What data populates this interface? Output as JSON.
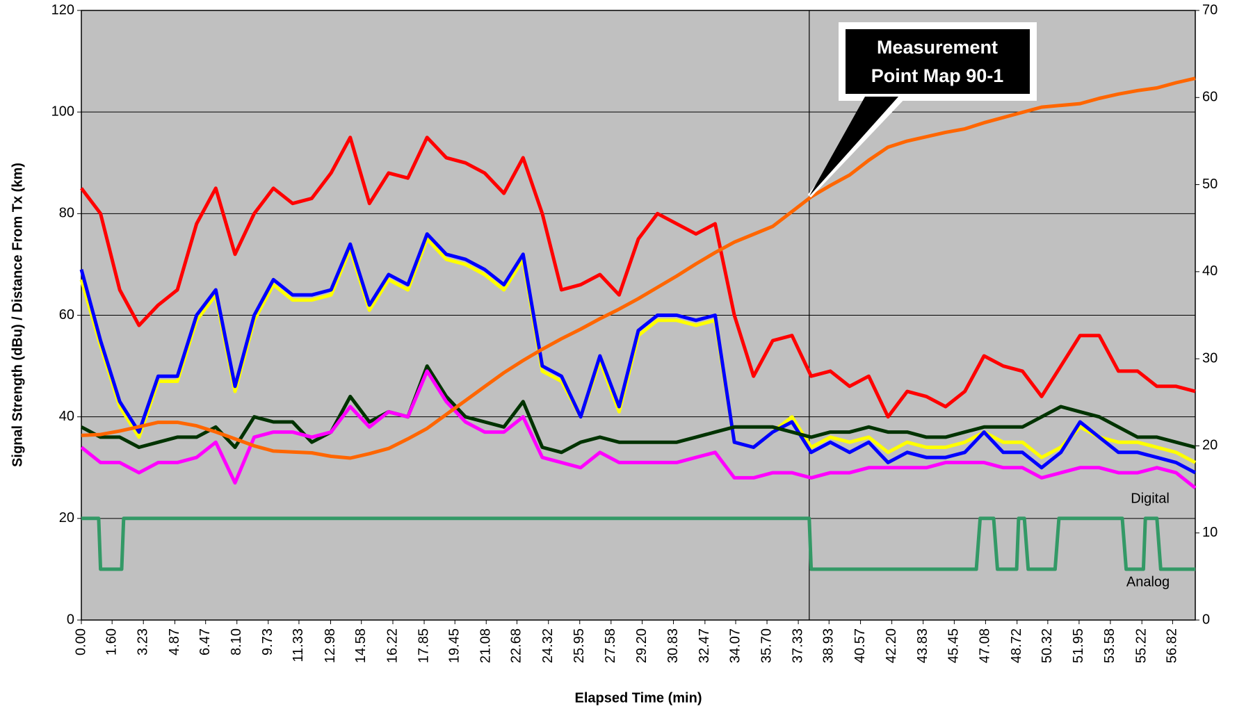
{
  "chart_data": {
    "type": "line",
    "xlabel": "Elapsed Time (min)",
    "ylabel": "Signal Strength (dBu) / Distance From Tx (km)",
    "xlim": [
      0,
      58
    ],
    "xticks": [
      {
        "value": 0,
        "label": "0.00"
      },
      {
        "value": 1.6,
        "label": "1.60"
      },
      3.23,
      4.87,
      6.47,
      {
        "value": 8.1,
        "label": "8.10"
      },
      9.73,
      11.33,
      12.98,
      14.58,
      16.22,
      17.85,
      19.45,
      21.08,
      22.68,
      24.32,
      25.95,
      27.58,
      {
        "value": 29.2,
        "label": "29.20"
      },
      30.83,
      32.47,
      34.07,
      {
        "value": 35.7,
        "label": "35.70"
      },
      37.33,
      38.93,
      40.57,
      {
        "value": 42.2,
        "label": "42.20"
      },
      43.83,
      45.45,
      47.08,
      48.72,
      50.32,
      51.95,
      53.58,
      55.22,
      56.82
    ],
    "ylim": [
      0,
      120
    ],
    "yticks": [
      0,
      20,
      40,
      60,
      80,
      100,
      120
    ],
    "y2lim": [
      0,
      70
    ],
    "y2ticks": [
      0,
      10,
      20,
      30,
      40,
      50,
      60,
      70
    ],
    "grid": true,
    "x": [
      0,
      1,
      2,
      3,
      4,
      5,
      6,
      7,
      8,
      9,
      10,
      11,
      12,
      13,
      14,
      15,
      16,
      17,
      18,
      19,
      20,
      21,
      22,
      23,
      24,
      25,
      26,
      27,
      28,
      29,
      30,
      31,
      32,
      33,
      34,
      35,
      36,
      37,
      38,
      39,
      40,
      41,
      42,
      43,
      44,
      45,
      46,
      47,
      48,
      49,
      50,
      51,
      52,
      53,
      54,
      55,
      56,
      57,
      58
    ],
    "series": [
      {
        "color": "#ff0000",
        "values": [
          85,
          80,
          65,
          58,
          62,
          65,
          78,
          85,
          72,
          80,
          85,
          82,
          83,
          88,
          95,
          82,
          88,
          87,
          95,
          91,
          90,
          88,
          84,
          91,
          80,
          65,
          66,
          68,
          64,
          75,
          80,
          78,
          76,
          78,
          60,
          48,
          55,
          56,
          48,
          49,
          46,
          48,
          40,
          45,
          44,
          42,
          45,
          52,
          50,
          49,
          44,
          50,
          56,
          56,
          49,
          49,
          46,
          46,
          45
        ]
      },
      {
        "color": "#ffff00",
        "values": [
          67,
          54,
          42,
          36,
          47,
          47,
          59,
          64,
          45,
          59,
          66,
          63,
          63,
          64,
          73,
          61,
          67,
          65,
          75,
          71,
          70,
          68,
          65,
          71,
          49,
          47,
          40,
          51,
          41,
          56,
          59,
          59,
          58,
          59,
          35,
          34,
          37,
          40,
          34,
          36,
          35,
          36,
          33,
          35,
          34,
          34,
          35,
          37,
          35,
          35,
          32,
          34,
          38,
          36,
          35,
          35,
          34,
          33,
          31
        ]
      },
      {
        "color": "#0000ff",
        "values": [
          69,
          55,
          43,
          37,
          48,
          48,
          60,
          65,
          46,
          60,
          67,
          64,
          64,
          65,
          74,
          62,
          68,
          66,
          76,
          72,
          71,
          69,
          66,
          72,
          50,
          48,
          40,
          52,
          42,
          57,
          60,
          60,
          59,
          60,
          35,
          34,
          37,
          39,
          33,
          35,
          33,
          35,
          31,
          33,
          32,
          32,
          33,
          37,
          33,
          33,
          30,
          33,
          39,
          36,
          33,
          33,
          32,
          31,
          29
        ]
      },
      {
        "color": "#003300",
        "values": [
          38,
          36,
          36,
          34,
          35,
          36,
          36,
          38,
          34,
          40,
          39,
          39,
          35,
          37,
          44,
          39,
          41,
          40,
          50,
          44,
          40,
          39,
          38,
          43,
          34,
          33,
          35,
          36,
          35,
          35,
          35,
          35,
          36,
          37,
          38,
          38,
          38,
          37,
          36,
          37,
          37,
          38,
          37,
          37,
          36,
          36,
          37,
          38,
          38,
          38,
          40,
          42,
          41,
          40,
          38,
          36,
          36,
          35,
          34
        ]
      },
      {
        "color": "#ff00ff",
        "values": [
          34,
          31,
          31,
          29,
          31,
          31,
          32,
          35,
          27,
          36,
          37,
          37,
          36,
          37,
          42,
          38,
          41,
          40,
          49,
          43,
          39,
          37,
          37,
          40,
          32,
          31,
          30,
          33,
          31,
          31,
          31,
          31,
          32,
          33,
          28,
          28,
          29,
          29,
          28,
          29,
          29,
          30,
          30,
          30,
          30,
          31,
          31,
          31,
          30,
          30,
          28,
          29,
          30,
          30,
          29,
          29,
          30,
          29,
          26
        ]
      },
      {
        "color": "#ff6600",
        "axis": "y2",
        "values": [
          21.2,
          21.3,
          21.7,
          22.2,
          22.7,
          22.7,
          22.3,
          21.6,
          20.8,
          20.0,
          19.4,
          19.3,
          19.2,
          18.8,
          18.6,
          19.1,
          19.7,
          20.8,
          22.0,
          23.6,
          25.2,
          26.8,
          28.4,
          29.8,
          31.1,
          32.3,
          33.4,
          34.6,
          35.7,
          36.9,
          38.2,
          39.5,
          40.9,
          42.2,
          43.4,
          44.3,
          45.2,
          46.9,
          48.6,
          49.9,
          51.1,
          52.8,
          54.3,
          55.0,
          55.5,
          56.0,
          56.4,
          57.1,
          57.7,
          58.3,
          58.9,
          59.1,
          59.3,
          59.9,
          60.4,
          60.8,
          61.1,
          61.7,
          62.2
        ]
      },
      {
        "color": "#339966",
        "x": [
          0,
          0.9,
          1.0,
          2.1,
          2.2,
          37.9,
          38.0,
          46.6,
          46.8,
          47.5,
          47.7,
          48.7,
          48.8,
          49.1,
          49.3,
          50.7,
          50.9,
          54.2,
          54.4,
          55.3,
          55.4,
          56.0,
          56.2,
          58
        ],
        "values": [
          20,
          20,
          10,
          10,
          20,
          20,
          10,
          10,
          20,
          20,
          10,
          10,
          20,
          20,
          10,
          10,
          20,
          20,
          10,
          10,
          20,
          20,
          10,
          10
        ]
      }
    ],
    "marker_x": 37.9,
    "annotation": [
      "Measurement",
      "Point Map 90-1"
    ],
    "digital_label": "Digital",
    "analog_label": "Analog"
  }
}
